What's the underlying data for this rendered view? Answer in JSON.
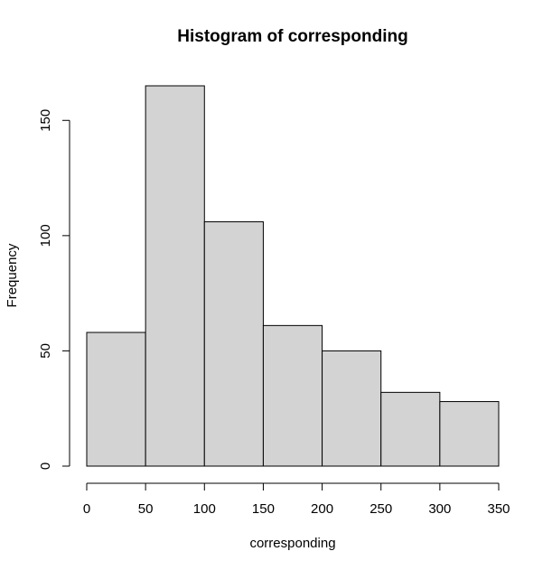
{
  "chart_data": {
    "type": "bar",
    "title": "Histogram of corresponding",
    "xlabel": "corresponding",
    "ylabel": "Frequency",
    "bins": [
      {
        "start": 0,
        "end": 50,
        "count": 58
      },
      {
        "start": 50,
        "end": 100,
        "count": 165
      },
      {
        "start": 100,
        "end": 150,
        "count": 106
      },
      {
        "start": 150,
        "end": 200,
        "count": 61
      },
      {
        "start": 200,
        "end": 250,
        "count": 50
      },
      {
        "start": 250,
        "end": 300,
        "count": 32
      },
      {
        "start": 300,
        "end": 350,
        "count": 28
      }
    ],
    "xticks": [
      0,
      50,
      100,
      150,
      200,
      250,
      300,
      350
    ],
    "yticks": [
      0,
      50,
      100,
      150
    ],
    "xlim": [
      0,
      350
    ],
    "ylim": [
      0,
      165
    ],
    "grid": false,
    "colors": {
      "bar_fill": "#d3d3d3",
      "bar_stroke": "#000000"
    }
  }
}
